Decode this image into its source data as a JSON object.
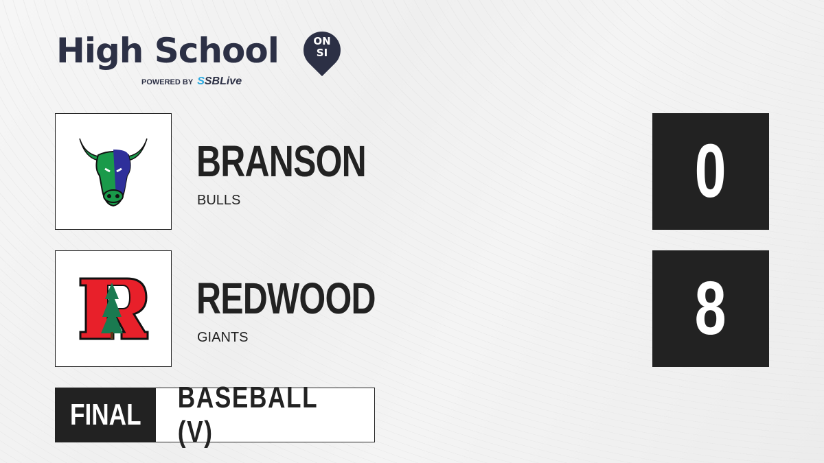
{
  "brand": {
    "title": "High School",
    "badge_top": "ON",
    "badge_bottom": "SI",
    "powered_by": "POWERED BY",
    "partner": "SBLive"
  },
  "teams": [
    {
      "name": "BRANSON",
      "mascot": "BULLS",
      "score": "0",
      "logo": "bull-logo"
    },
    {
      "name": "REDWOOD",
      "mascot": "GIANTS",
      "score": "8",
      "logo": "redwood-r-logo"
    }
  ],
  "game": {
    "status": "FINAL",
    "sport": "BASEBALL (V)"
  },
  "colors": {
    "brand": "#2c3045",
    "accent": "#2aa9e0",
    "score_bg": "#222222"
  }
}
